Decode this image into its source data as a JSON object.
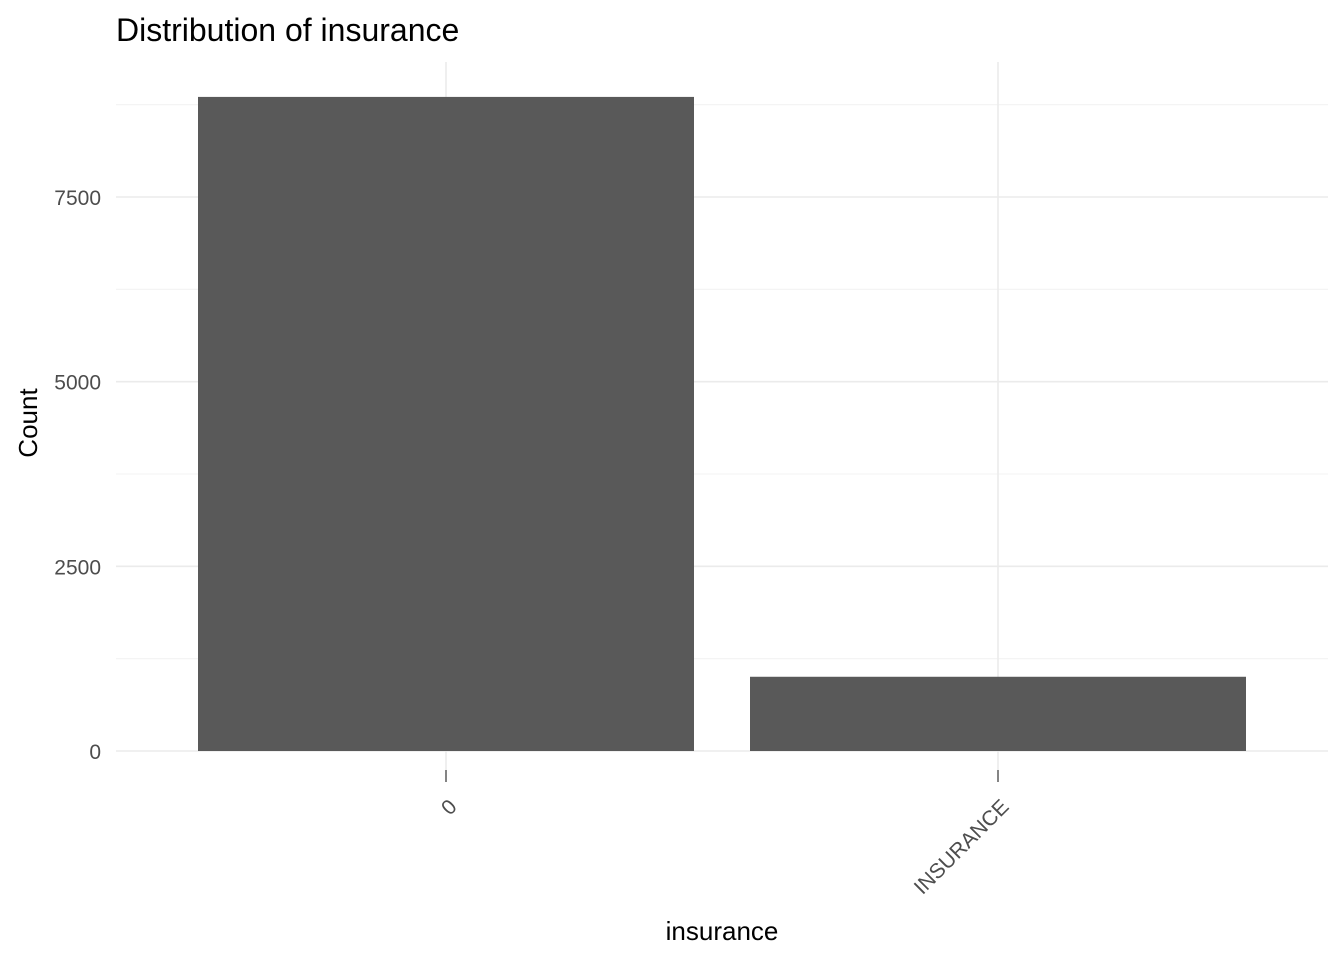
{
  "chart_data": {
    "type": "bar",
    "title": "Distribution of insurance",
    "xlabel": "insurance",
    "ylabel": "Count",
    "categories": [
      "0",
      "INSURANCE"
    ],
    "values": [
      8855,
      1005
    ],
    "ylim": [
      0,
      9300
    ],
    "yticks": [
      0,
      2500,
      5000,
      7500
    ],
    "ytick_labels": [
      "0",
      "2500",
      "5000",
      "7500"
    ],
    "x_tick_rotation_deg": 45,
    "grid": true,
    "legend": "none",
    "bar_color": "#595959",
    "background": "#ffffff"
  }
}
